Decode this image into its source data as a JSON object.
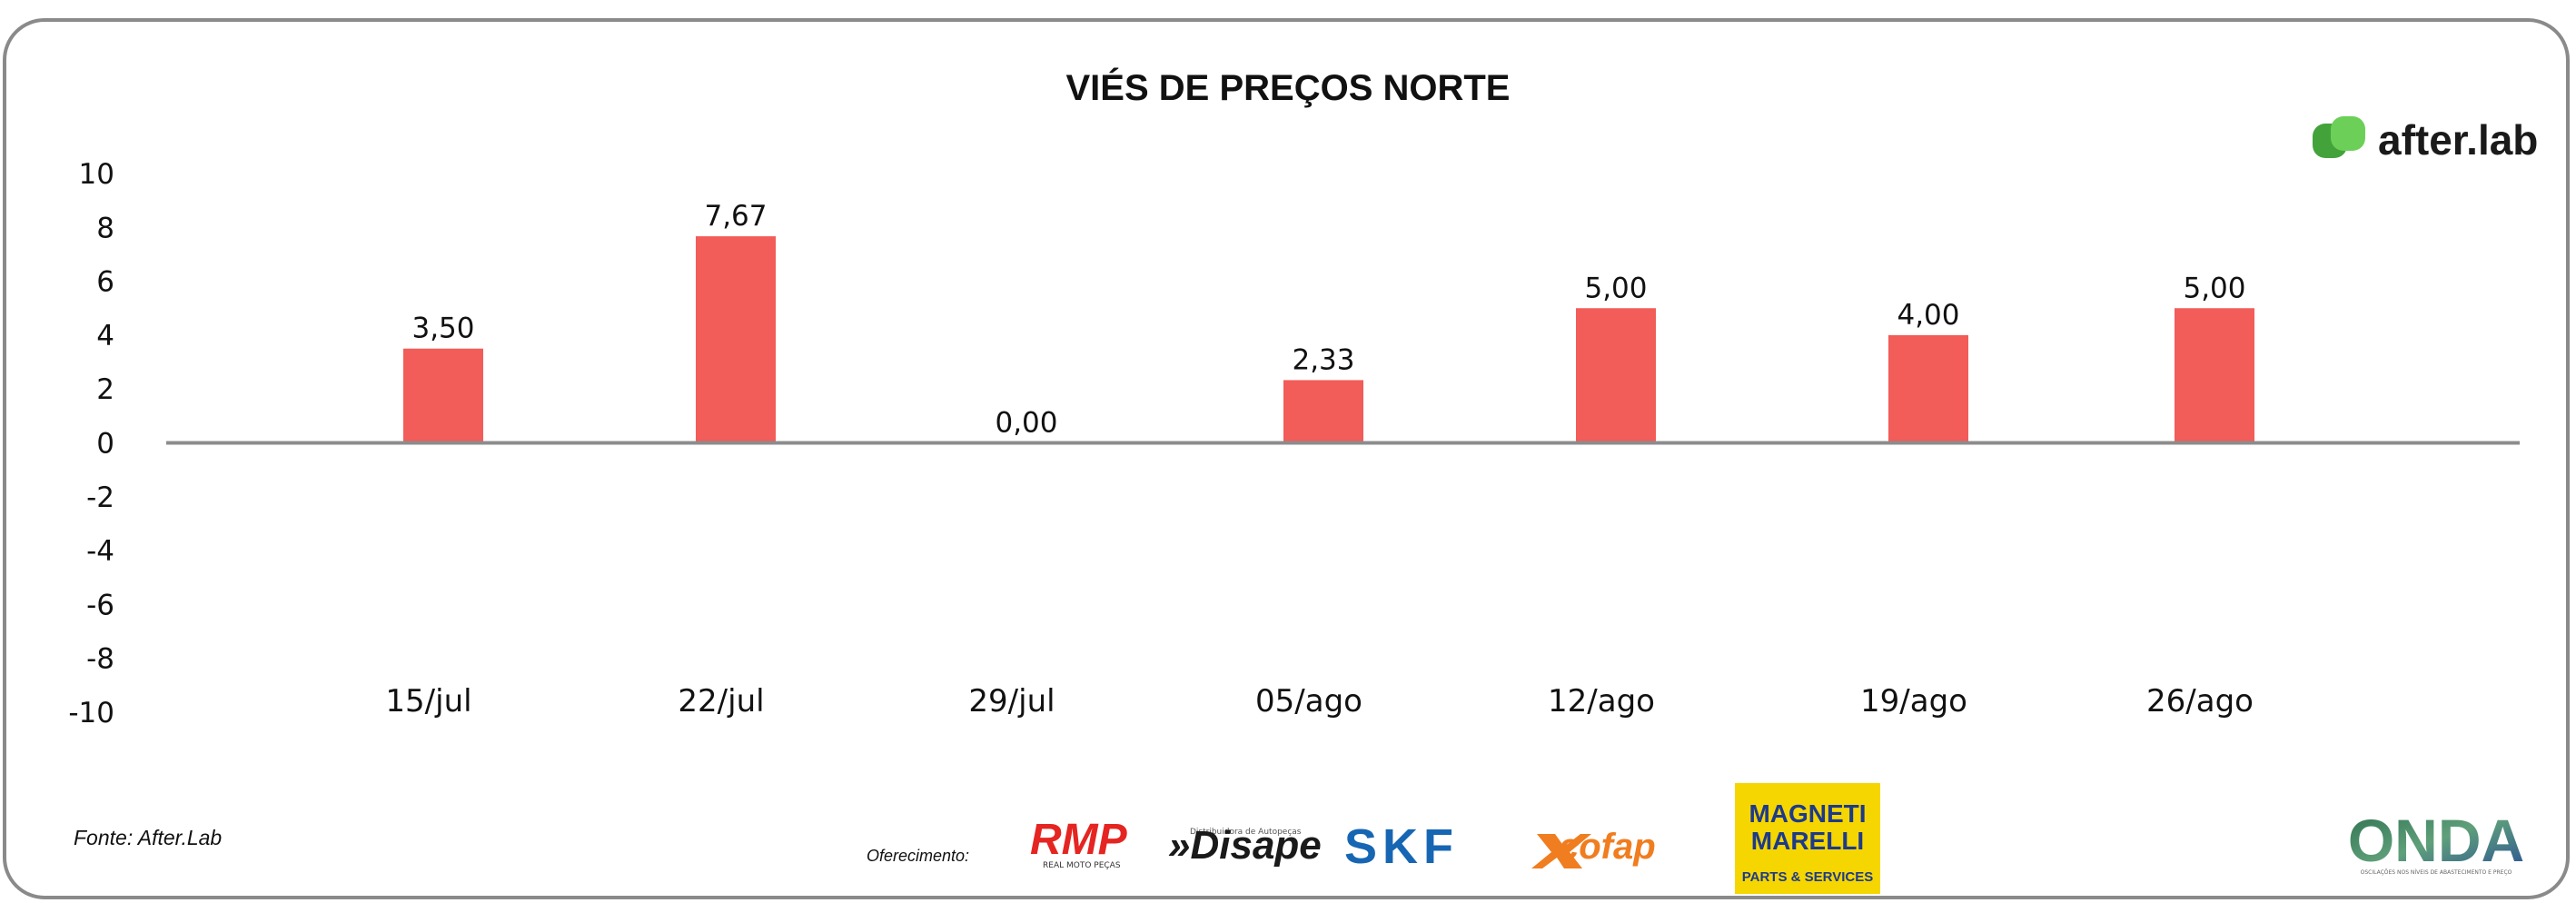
{
  "chart_data": {
    "type": "bar",
    "title": "VIÉS DE PREÇOS NORTE",
    "categories": [
      "15/jul",
      "22/jul",
      "29/jul",
      "05/ago",
      "12/ago",
      "19/ago",
      "26/ago"
    ],
    "values": [
      3.5,
      7.67,
      0.0,
      2.33,
      5.0,
      4.0,
      5.0
    ],
    "data_labels": [
      "3,50",
      "7,67",
      "0,00",
      "2,33",
      "5,00",
      "4,00",
      "5,00"
    ],
    "y_ticks": [
      "10",
      "8",
      "6",
      "4",
      "2",
      "0",
      "-2",
      "-4",
      "-6",
      "-8",
      "-10"
    ],
    "ylim": [
      -10,
      10
    ],
    "grid": false,
    "legend": "none",
    "bar_color": "#f25c59"
  },
  "footer": {
    "source": "Fonte: After.Lab",
    "sponsor_label": "Oferecimento:",
    "sponsors": {
      "rmp": "RMP",
      "rmp_sub": "REAL MOTO PEÇAS",
      "disape": "»Disape",
      "disape_sub": "Distribuidora de Autopeças",
      "skf": "SKF",
      "cofap": "cofap",
      "magneti_1": "MAGNETI",
      "magneti_2": "MARELLI",
      "magneti_sub": "PARTS & SERVICES"
    },
    "onda": "ONDA",
    "onda_sub": "OSCILAÇÕES NOS NÍVEIS DE ABASTECIMENTO E PREÇO"
  },
  "brand": {
    "name": "after.lab",
    "color": "#5cc04a"
  }
}
